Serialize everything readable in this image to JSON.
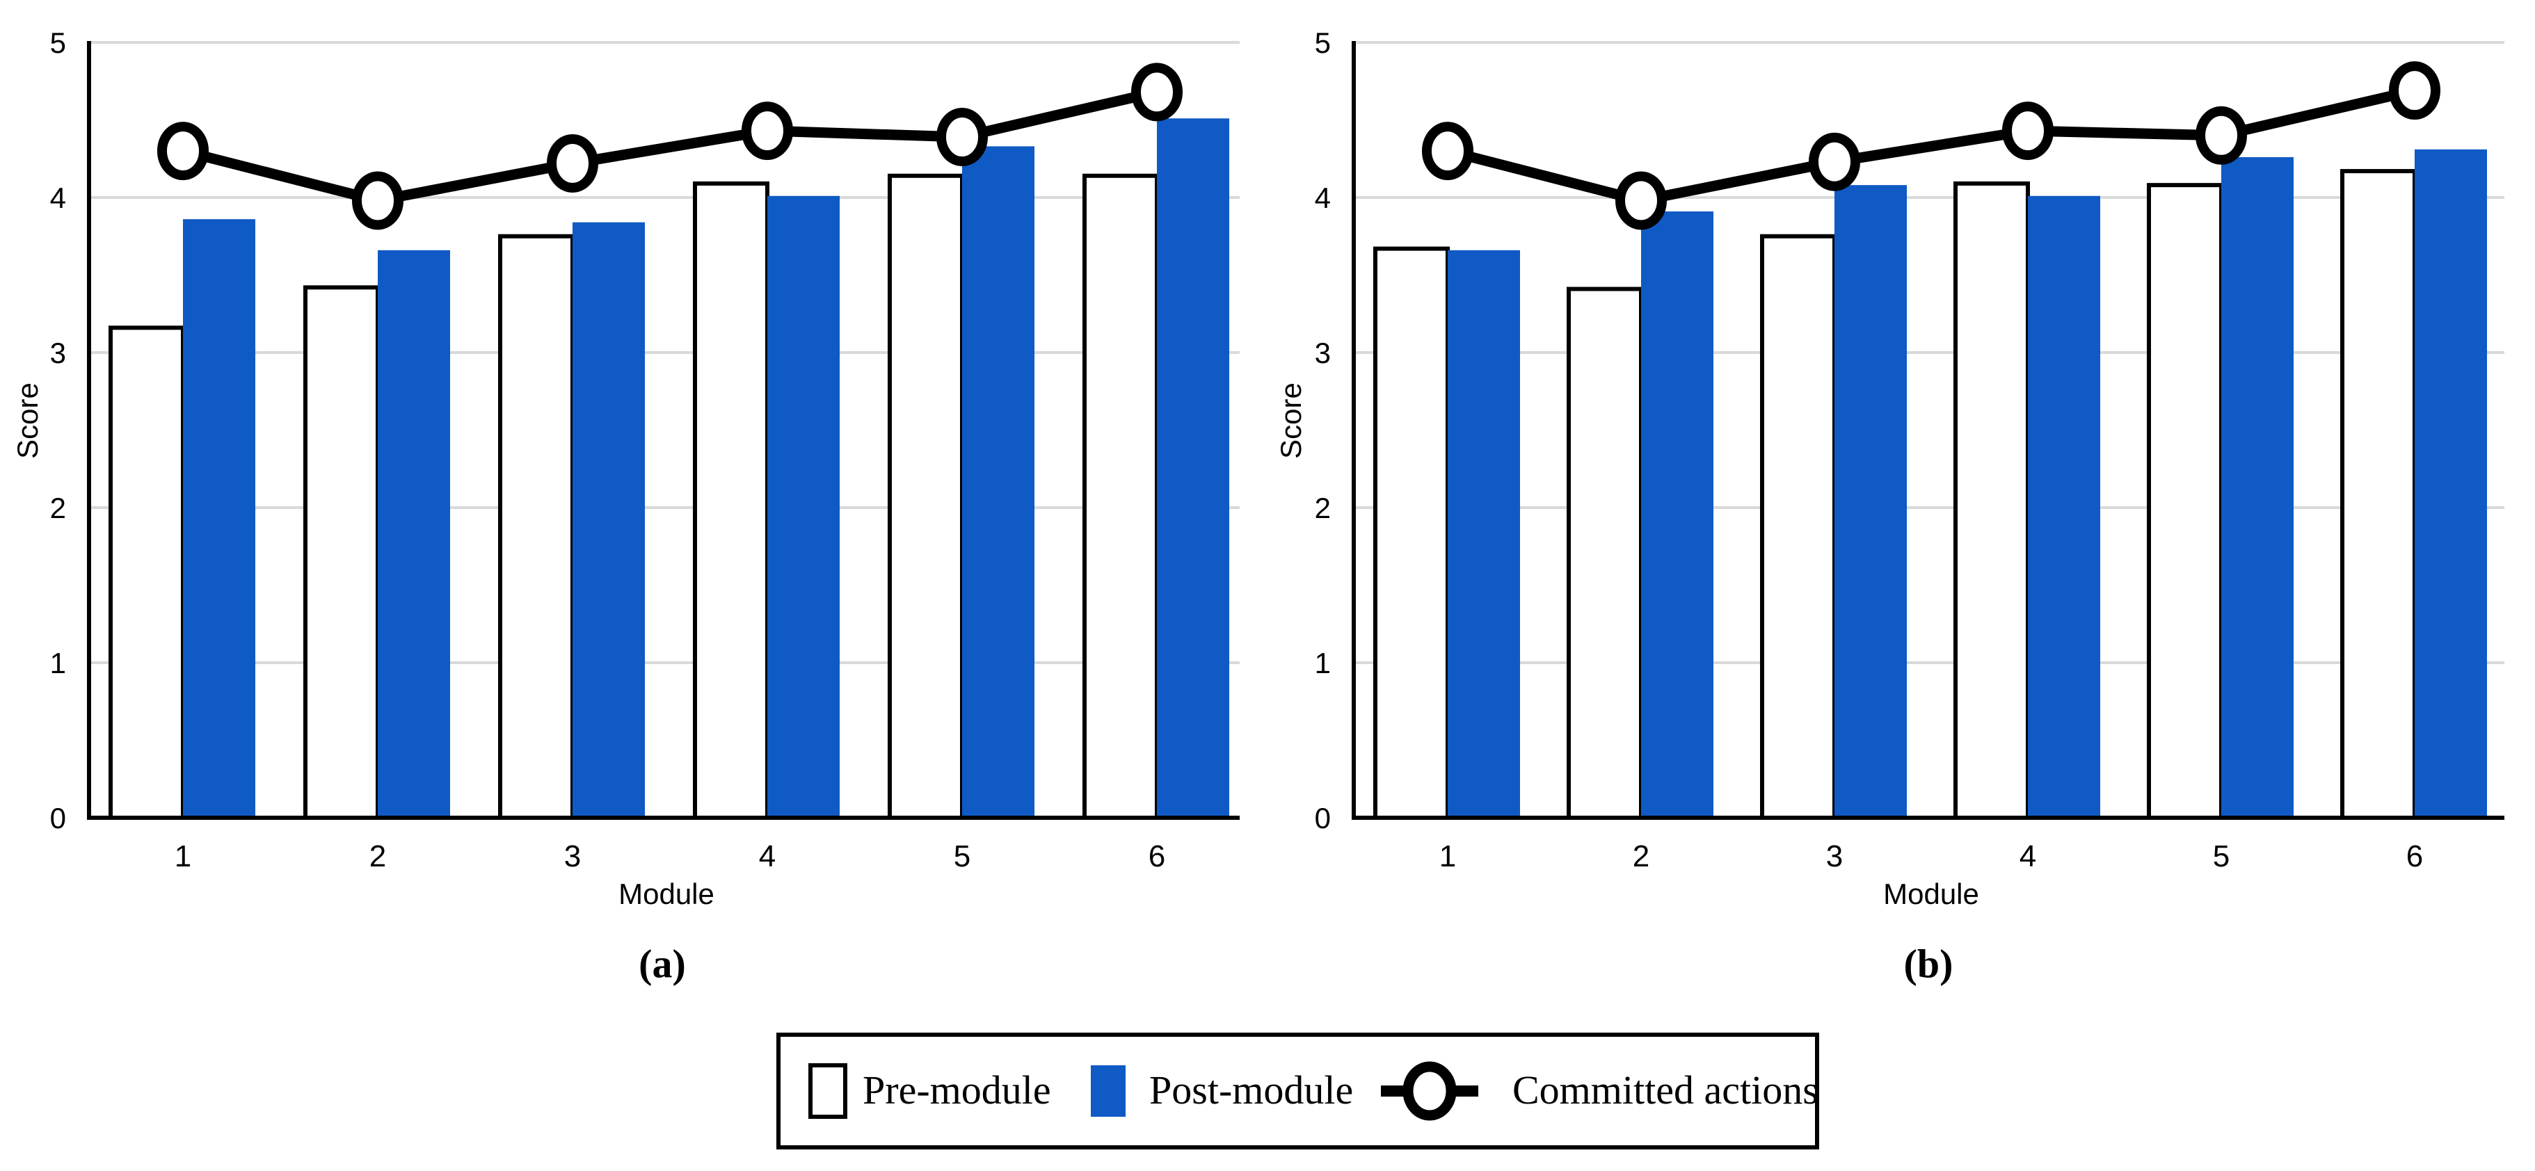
{
  "figure": {
    "background": "#FFFFFF",
    "colors": {
      "pre_bar_fill": "#FFFFFF",
      "post_bar_fill": "#0F5AC4",
      "bar_outline": "#000000",
      "gridline": "#D9D9D9",
      "axis": "#000000",
      "line": "#000000",
      "marker_fill": "#FFFFFF",
      "legend_border": "#000000",
      "text": "#000000"
    },
    "panels": [
      {
        "caption": "(a)"
      },
      {
        "caption": "(b)"
      }
    ],
    "legend": {
      "items": [
        {
          "label": "Pre-module",
          "swatch": "white-bar"
        },
        {
          "label": "Post-module",
          "swatch": "blue-bar"
        },
        {
          "label": "Committed actions",
          "swatch": "line-open-circle"
        }
      ]
    }
  },
  "chart_data": [
    {
      "type": "bar+line",
      "title": "(a)",
      "xlabel": "Module",
      "ylabel": "Score",
      "categories": [
        "1",
        "2",
        "3",
        "4",
        "5",
        "6"
      ],
      "ylim": [
        0,
        5
      ],
      "yticks": [
        "0",
        "1",
        "2",
        "3",
        "4",
        "5"
      ],
      "grid": true,
      "legend_position": "bottom-shared",
      "series": [
        {
          "name": "Pre-module",
          "type": "bar",
          "values": [
            3.16,
            3.42,
            3.75,
            4.09,
            4.14,
            4.14
          ]
        },
        {
          "name": "Post-module",
          "type": "bar",
          "values": [
            3.86,
            3.66,
            3.84,
            4.01,
            4.33,
            4.51
          ]
        },
        {
          "name": "Committed actions",
          "type": "line",
          "values": [
            4.3,
            3.98,
            4.22,
            4.43,
            4.39,
            4.68
          ]
        }
      ]
    },
    {
      "type": "bar+line",
      "title": "(b)",
      "xlabel": "Module",
      "ylabel": "Score",
      "categories": [
        "1",
        "2",
        "3",
        "4",
        "5",
        "6"
      ],
      "ylim": [
        0,
        5
      ],
      "yticks": [
        "0",
        "1",
        "2",
        "3",
        "4",
        "5"
      ],
      "grid": true,
      "legend_position": "bottom-shared",
      "series": [
        {
          "name": "Pre-module",
          "type": "bar",
          "values": [
            3.67,
            3.41,
            3.75,
            4.09,
            4.08,
            4.17
          ]
        },
        {
          "name": "Post-module",
          "type": "bar",
          "values": [
            3.66,
            3.91,
            4.08,
            4.01,
            4.26,
            4.31
          ]
        },
        {
          "name": "Committed actions",
          "type": "line",
          "values": [
            4.3,
            3.98,
            4.23,
            4.43,
            4.4,
            4.69
          ]
        }
      ]
    }
  ]
}
